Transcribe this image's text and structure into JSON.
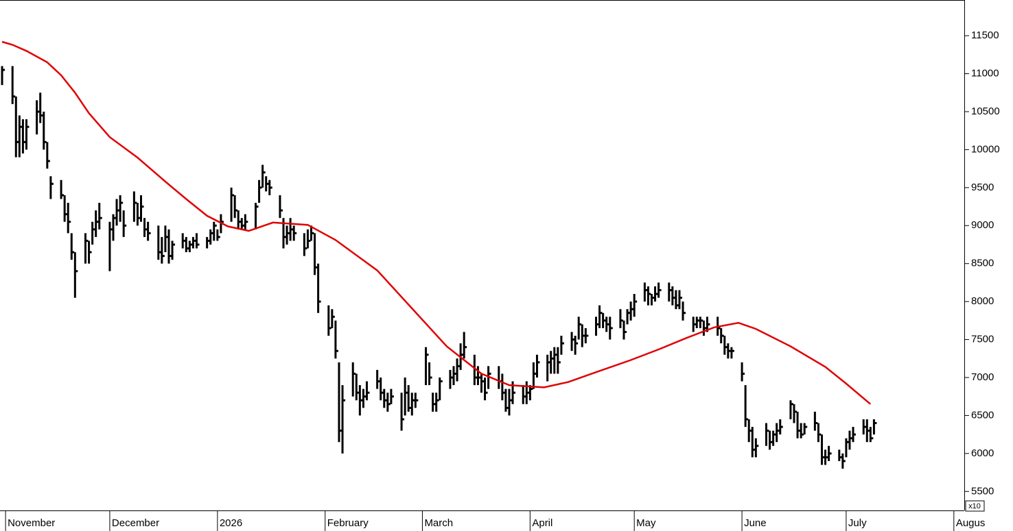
{
  "chart_data": {
    "type": "hlc",
    "color": "#000000",
    "x": [
      -1,
      2,
      3,
      4,
      5,
      6,
      9,
      10,
      11,
      12,
      13,
      16,
      17,
      18,
      19,
      20,
      23,
      24,
      25,
      26,
      27,
      30,
      31,
      32,
      33,
      34,
      37,
      38,
      39,
      40,
      41,
      44,
      45,
      46,
      47,
      48,
      51,
      52,
      53,
      54,
      55,
      58,
      59,
      60,
      61,
      62,
      65,
      66,
      67,
      68,
      69,
      72,
      73,
      74,
      75,
      76,
      79,
      80,
      81,
      82,
      83,
      86,
      87,
      88,
      89,
      90,
      93,
      94,
      95,
      96,
      97,
      100,
      101,
      102,
      103,
      104,
      107,
      108,
      109,
      110,
      111,
      114,
      115,
      116,
      117,
      118,
      121,
      122,
      123,
      124,
      125,
      128,
      129,
      130,
      131,
      132,
      135,
      136,
      137,
      138,
      139,
      142,
      143,
      144,
      145,
      146,
      149,
      150,
      151,
      152,
      153,
      156,
      157,
      158,
      159,
      160,
      163,
      164,
      165,
      166,
      167,
      170,
      171,
      172,
      173,
      174,
      177,
      178,
      179,
      180,
      181,
      184,
      185,
      186,
      187,
      188,
      191,
      192,
      193,
      194,
      195,
      198,
      199,
      200,
      201,
      202,
      205,
      206,
      207,
      208,
      209,
      212,
      213,
      214,
      215,
      216,
      219,
      220,
      221,
      222,
      223,
      226,
      227,
      228,
      229,
      230,
      233,
      234,
      235,
      236,
      237,
      240,
      241,
      242,
      243,
      244,
      247,
      248,
      249,
      250
    ],
    "high": [
      11100,
      11100,
      10700,
      10450,
      10400,
      10400,
      10650,
      10750,
      10500,
      10100,
      9650,
      9600,
      9400,
      9300,
      8900,
      8650,
      8900,
      8800,
      9050,
      9200,
      9300,
      9050,
      9150,
      9350,
      9400,
      9200,
      9450,
      9300,
      9400,
      9100,
      9050,
      9000,
      8850,
      9000,
      8950,
      8800,
      8900,
      8850,
      8800,
      8850,
      8900,
      8850,
      8950,
      9050,
      8950,
      9150,
      9500,
      9400,
      9200,
      9100,
      9150,
      9300,
      9600,
      9800,
      9650,
      9600,
      9400,
      9100,
      9000,
      9100,
      9000,
      8900,
      8950,
      9000,
      8900,
      8500,
      7950,
      7900,
      7750,
      7200,
      6900,
      7200,
      7050,
      6900,
      6850,
      6950,
      7100,
      7000,
      6850,
      6800,
      6850,
      6800,
      7000,
      6900,
      6800,
      6800,
      7400,
      7200,
      6800,
      6800,
      7000,
      7100,
      7150,
      7250,
      7450,
      7600,
      7300,
      7150,
      7050,
      7000,
      7150,
      7150,
      7050,
      6850,
      6850,
      6950,
      6900,
      6950,
      6900,
      7200,
      7300,
      7300,
      7350,
      7400,
      7400,
      7550,
      7600,
      7550,
      7800,
      7700,
      7650,
      7800,
      7950,
      7850,
      7800,
      7800,
      7900,
      7750,
      7900,
      8000,
      8100,
      8250,
      8200,
      8100,
      8200,
      8250,
      8250,
      8200,
      8150,
      8150,
      8000,
      7800,
      7800,
      7800,
      7750,
      7800,
      7800,
      7650,
      7550,
      7450,
      7400,
      7200,
      6900,
      6450,
      6350,
      6200,
      6400,
      6300,
      6300,
      6400,
      6450,
      6700,
      6650,
      6550,
      6400,
      6400,
      6550,
      6400,
      6250,
      6050,
      6100,
      6050,
      6000,
      6200,
      6300,
      6350,
      6450,
      6450,
      6350,
      6450
    ],
    "low": [
      10850,
      10600,
      9900,
      9900,
      9950,
      10000,
      10200,
      10350,
      10000,
      9750,
      9350,
      9350,
      9050,
      8900,
      8550,
      8050,
      8500,
      8500,
      8750,
      8850,
      8950,
      8400,
      8800,
      9000,
      9050,
      8850,
      9050,
      9000,
      9050,
      8850,
      8800,
      8550,
      8500,
      8650,
      8500,
      8550,
      8700,
      8650,
      8650,
      8700,
      8700,
      8700,
      8750,
      8800,
      8800,
      8900,
      9050,
      9100,
      8950,
      8950,
      8950,
      8950,
      9300,
      9500,
      9450,
      9400,
      9100,
      8700,
      8750,
      8800,
      8800,
      8600,
      8700,
      8800,
      8350,
      7850,
      7550,
      7650,
      7250,
      6150,
      6000,
      6750,
      6700,
      6500,
      6600,
      6700,
      6850,
      6700,
      6600,
      6550,
      6650,
      6300,
      6500,
      6550,
      6500,
      6600,
      6900,
      6900,
      6550,
      6550,
      6700,
      6850,
      6900,
      6950,
      7100,
      7250,
      6900,
      6900,
      6800,
      6700,
      6850,
      6850,
      6700,
      6550,
      6500,
      6650,
      6650,
      6650,
      6700,
      6850,
      7000,
      6950,
      7050,
      7050,
      7050,
      7300,
      7350,
      7300,
      7500,
      7400,
      7450,
      7550,
      7650,
      7650,
      7600,
      7500,
      7650,
      7500,
      7700,
      7750,
      7800,
      8000,
      7950,
      7950,
      8000,
      8050,
      8000,
      7950,
      7900,
      7900,
      7750,
      7600,
      7650,
      7650,
      7550,
      7600,
      7550,
      7450,
      7300,
      7250,
      7250,
      6950,
      6350,
      6150,
      5950,
      5950,
      6100,
      6050,
      6100,
      6150,
      6250,
      6450,
      6400,
      6200,
      6200,
      6250,
      6300,
      6150,
      5850,
      5850,
      5900,
      5900,
      5800,
      5950,
      6050,
      6150,
      6250,
      6150,
      6150,
      6250
    ],
    "close": [
      11050,
      10700,
      10100,
      10300,
      10100,
      10300,
      10500,
      10450,
      10100,
      9850,
      9550,
      9400,
      9150,
      9050,
      8650,
      8400,
      8800,
      8650,
      8950,
      9050,
      9100,
      8950,
      9100,
      9200,
      9300,
      9000,
      9300,
      9100,
      9250,
      8950,
      8900,
      8650,
      8600,
      8850,
      8600,
      8750,
      8800,
      8700,
      8750,
      8800,
      8750,
      8800,
      8900,
      9000,
      8850,
      9050,
      9400,
      9200,
      9050,
      9000,
      9050,
      9250,
      9500,
      9700,
      9550,
      9500,
      9200,
      8850,
      8900,
      8950,
      8900,
      8700,
      8800,
      8900,
      8450,
      8000,
      7650,
      7800,
      7350,
      6300,
      6700,
      7050,
      6800,
      6700,
      6750,
      6800,
      6950,
      6800,
      6700,
      6650,
      6750,
      6450,
      6800,
      6600,
      6700,
      6700,
      7300,
      7000,
      6650,
      6700,
      6950,
      7000,
      7050,
      7150,
      7300,
      7400,
      7000,
      7000,
      6950,
      6800,
      7050,
      6950,
      6800,
      6600,
      6700,
      6800,
      6750,
      6800,
      6850,
      7050,
      7200,
      7200,
      7250,
      7300,
      7200,
      7450,
      7500,
      7450,
      7700,
      7550,
      7550,
      7700,
      7850,
      7750,
      7700,
      7650,
      7750,
      7600,
      7850,
      7900,
      8000,
      8150,
      8100,
      8050,
      8100,
      8150,
      8150,
      8050,
      7950,
      8050,
      7850,
      7700,
      7750,
      7750,
      7650,
      7700,
      7650,
      7550,
      7400,
      7350,
      7350,
      7050,
      6450,
      6300,
      6050,
      6100,
      6300,
      6150,
      6250,
      6300,
      6350,
      6650,
      6550,
      6300,
      6250,
      6350,
      6400,
      6250,
      5950,
      5950,
      6000,
      5950,
      5900,
      6150,
      6200,
      6250,
      6350,
      6300,
      6200,
      6400
    ],
    "overlay": {
      "type": "line",
      "color": "#e00000",
      "x": [
        -1,
        2,
        6,
        12,
        16,
        20,
        24,
        30,
        38,
        46,
        52,
        58,
        64,
        70,
        77,
        87,
        95,
        107,
        117,
        127,
        137,
        145,
        155,
        162,
        170,
        180,
        188,
        196,
        204,
        211,
        216,
        226,
        236,
        242,
        249
      ],
      "values": [
        11420,
        11380,
        11300,
        11150,
        10980,
        10750,
        10480,
        10165,
        9895,
        9580,
        9350,
        9130,
        8990,
        8930,
        9040,
        9010,
        8810,
        8410,
        7910,
        7410,
        7050,
        6900,
        6870,
        6940,
        7070,
        7230,
        7370,
        7520,
        7660,
        7720,
        7640,
        7410,
        7140,
        6920,
        6650
      ]
    },
    "xlim": [
      -1.6,
      276
    ],
    "xticks": [
      {
        "value": 0,
        "label": "November"
      },
      {
        "value": 30,
        "label": "December"
      },
      {
        "value": 61,
        "label": "2026"
      },
      {
        "value": 92,
        "label": "February"
      },
      {
        "value": 120,
        "label": "March"
      },
      {
        "value": 151,
        "label": "April"
      },
      {
        "value": 181,
        "label": "May"
      },
      {
        "value": 212,
        "label": "June"
      },
      {
        "value": 242,
        "label": "July"
      },
      {
        "value": 273,
        "label": "Augus"
      }
    ],
    "ylim": [
      5250,
      11970
    ],
    "yticks": [
      5500,
      6000,
      6500,
      7000,
      7500,
      8000,
      8500,
      9000,
      9500,
      10000,
      10500,
      11000,
      11500
    ],
    "y_multiplier_label": "x10"
  }
}
